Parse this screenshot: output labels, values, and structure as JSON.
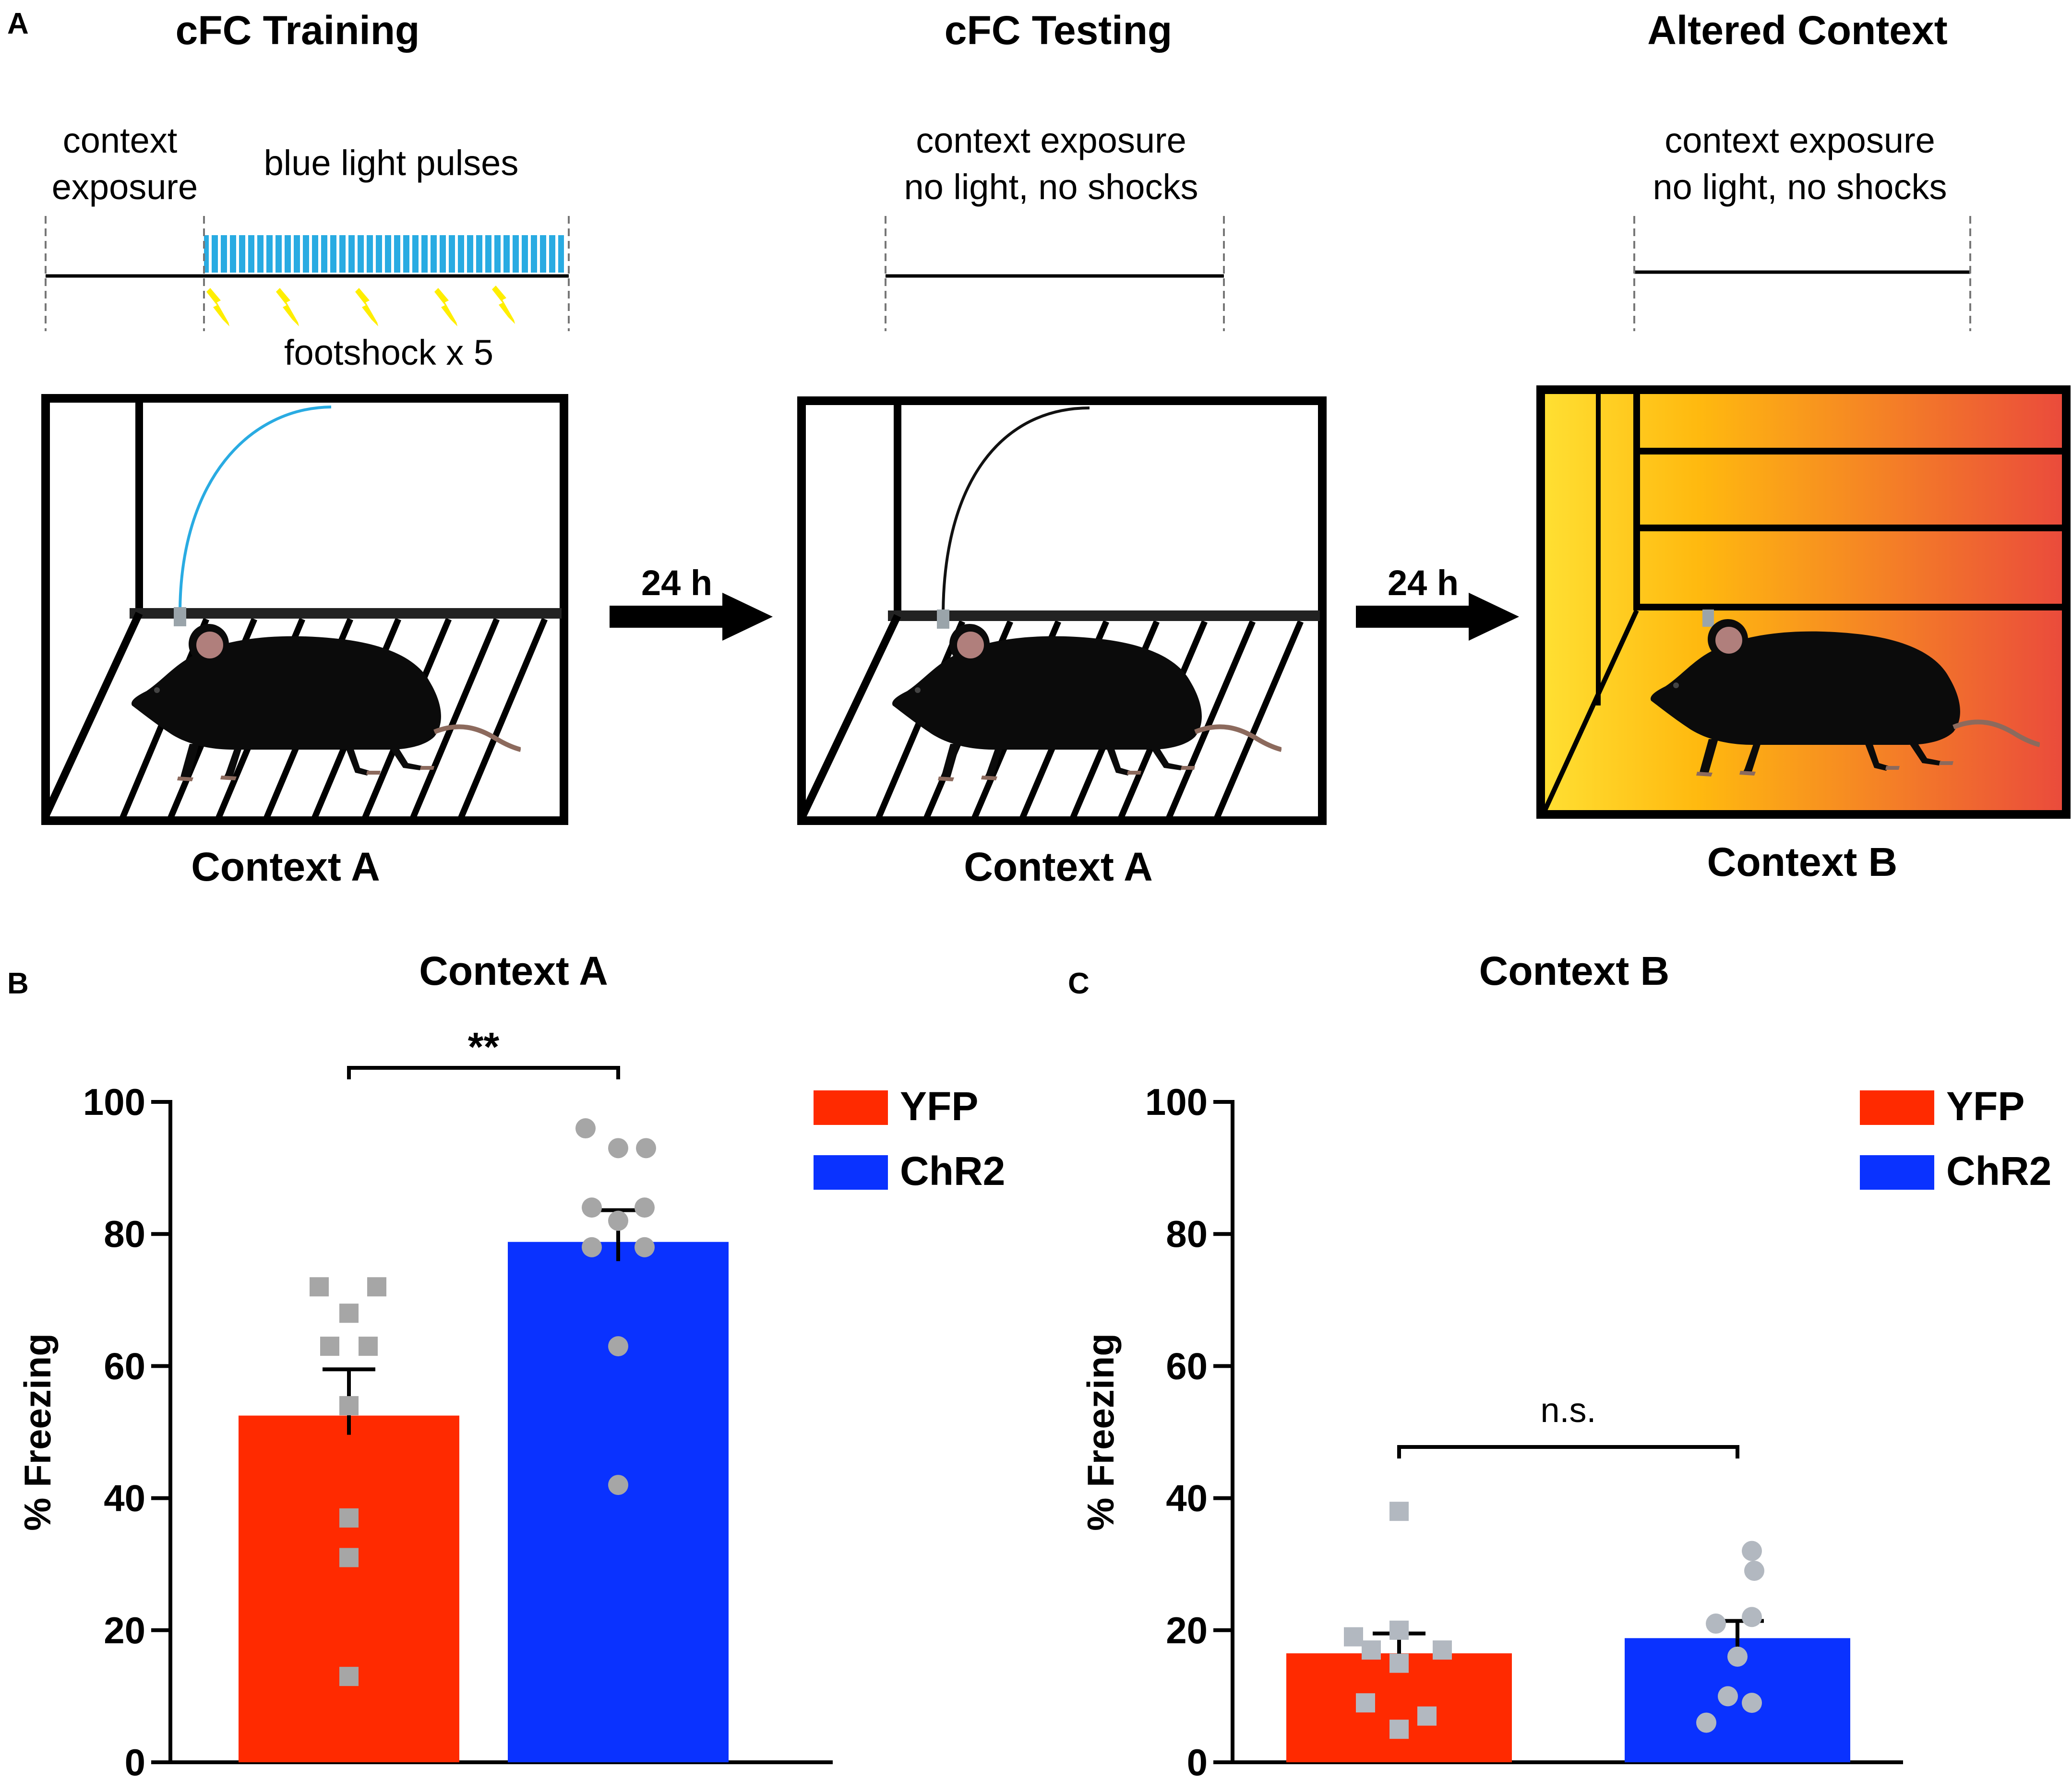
{
  "panels": {
    "a": {
      "letter": "A",
      "stages": [
        {
          "title": "cFC Training",
          "desc1": "context",
          "desc2": "exposure",
          "desc3": "blue light pulses",
          "shock_label": "footshock x 5",
          "context_label": "Context A"
        },
        {
          "title": "cFC Testing",
          "desc1": "context  exposure",
          "desc2": "no light, no shocks",
          "context_label": "Context A"
        },
        {
          "title": "Altered Context",
          "desc1": "context  exposure",
          "desc2": "no light, no shocks",
          "context_label": "Context B"
        }
      ],
      "intervals": [
        "24 h",
        "24 h"
      ]
    },
    "b": {
      "letter": "B"
    },
    "c": {
      "letter": "C"
    }
  },
  "colors": {
    "yfp": "#ff2a00",
    "chr2": "#0a32ff",
    "light": "#29abe2",
    "shock": "#ffee00",
    "yfp_points": "#a6a6a6",
    "chr2_points": "#a6a6a6",
    "yfp_points_c": "#b2b8c0",
    "chr2_points_c": "#b2b8c0",
    "ctx_b_left": "#ffe033",
    "ctx_b_mid": "#ffb90f",
    "ctx_b_right": "#ea4a3c"
  },
  "chart_data": [
    {
      "type": "bar",
      "title": "Context A",
      "ylabel": "% Freezing",
      "xlabel": "",
      "ylim": [
        0,
        100
      ],
      "yticks": [
        "0",
        "20",
        "40",
        "60",
        "80",
        "100"
      ],
      "categories": [
        "YFP",
        "ChR2"
      ],
      "values": [
        52.5,
        78.8
      ],
      "sem": [
        7.0,
        4.8
      ],
      "legend": [
        "YFP",
        "ChR2"
      ],
      "legend_position": "top-right",
      "significance": "**",
      "points": [
        {
          "group": "YFP",
          "marker": "square",
          "values": [
            72,
            72,
            68,
            63,
            63,
            54,
            37,
            31,
            13
          ]
        },
        {
          "group": "ChR2",
          "marker": "circle",
          "values": [
            96,
            93,
            93,
            84,
            84,
            82,
            78,
            78,
            63,
            42
          ]
        }
      ]
    },
    {
      "type": "bar",
      "title": "Context B",
      "ylabel": "% Freezing",
      "xlabel": "",
      "ylim": [
        0,
        100
      ],
      "yticks": [
        "0",
        "20",
        "40",
        "60",
        "80",
        "100"
      ],
      "categories": [
        "YFP",
        "ChR2"
      ],
      "values": [
        16.5,
        18.8
      ],
      "sem": [
        3.0,
        2.6
      ],
      "legend": [
        "YFP",
        "ChR2"
      ],
      "legend_position": "top-right",
      "significance": "n.s.",
      "points": [
        {
          "group": "YFP",
          "marker": "square",
          "values": [
            38,
            19,
            20,
            17,
            15,
            17,
            9,
            5,
            7
          ]
        },
        {
          "group": "ChR2",
          "marker": "circle",
          "values": [
            32,
            29,
            21,
            22,
            16,
            9,
            10,
            6
          ]
        }
      ]
    }
  ]
}
